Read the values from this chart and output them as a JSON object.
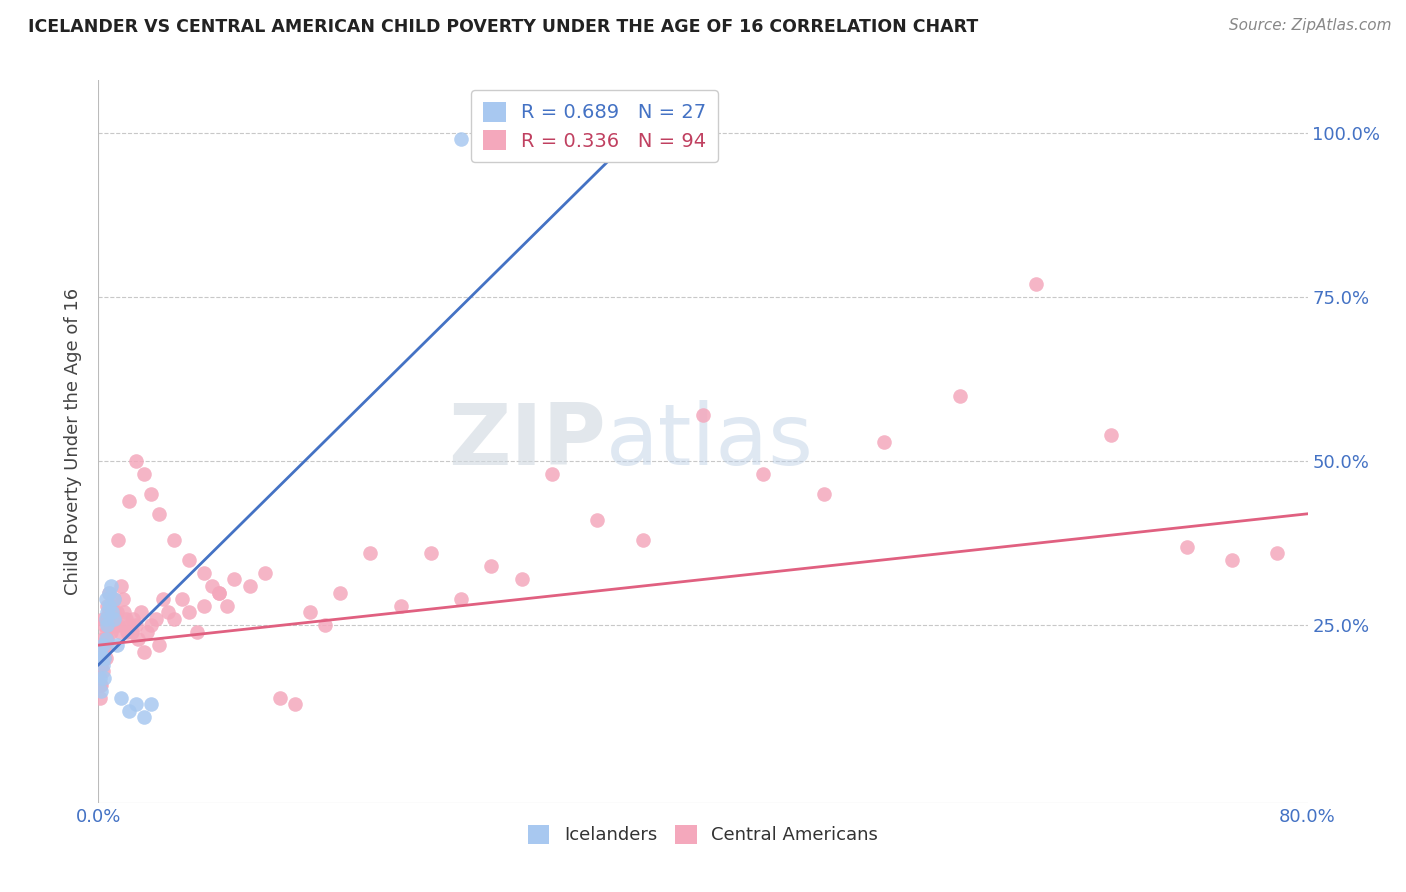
{
  "title": "ICELANDER VS CENTRAL AMERICAN CHILD POVERTY UNDER THE AGE OF 16 CORRELATION CHART",
  "source": "Source: ZipAtlas.com",
  "ylabel": "Child Poverty Under the Age of 16",
  "xlim": [
    0.0,
    0.8
  ],
  "ylim": [
    -0.02,
    1.08
  ],
  "ytick_positions": [
    0.25,
    0.5,
    0.75,
    1.0
  ],
  "ytick_labels": [
    "25.0%",
    "50.0%",
    "75.0%",
    "100.0%"
  ],
  "xtick_vals": [
    0.0,
    0.8
  ],
  "xtick_labels": [
    "0.0%",
    "80.0%"
  ],
  "grid_color": "#c8c8c8",
  "background_color": "#ffffff",
  "iceland_color": "#a8c8f0",
  "central_american_color": "#f4a8bc",
  "iceland_line_color": "#4472c4",
  "central_american_line_color": "#e06080",
  "iceland_R": 0.689,
  "iceland_N": 27,
  "central_american_R": 0.336,
  "central_american_N": 94,
  "iceland_x": [
    0.001,
    0.001,
    0.002,
    0.002,
    0.003,
    0.003,
    0.004,
    0.004,
    0.005,
    0.005,
    0.005,
    0.006,
    0.006,
    0.007,
    0.007,
    0.008,
    0.009,
    0.01,
    0.01,
    0.012,
    0.015,
    0.02,
    0.025,
    0.03,
    0.035,
    0.24,
    0.34
  ],
  "iceland_y": [
    0.21,
    0.17,
    0.2,
    0.15,
    0.22,
    0.19,
    0.2,
    0.17,
    0.29,
    0.26,
    0.23,
    0.27,
    0.25,
    0.3,
    0.28,
    0.31,
    0.27,
    0.29,
    0.26,
    0.22,
    0.14,
    0.12,
    0.13,
    0.11,
    0.13,
    0.99,
    0.99
  ],
  "ca_x": [
    0.001,
    0.001,
    0.001,
    0.002,
    0.002,
    0.002,
    0.003,
    0.003,
    0.003,
    0.003,
    0.004,
    0.004,
    0.004,
    0.005,
    0.005,
    0.005,
    0.006,
    0.006,
    0.006,
    0.007,
    0.007,
    0.008,
    0.008,
    0.009,
    0.009,
    0.01,
    0.01,
    0.011,
    0.012,
    0.013,
    0.014,
    0.015,
    0.016,
    0.017,
    0.018,
    0.019,
    0.02,
    0.022,
    0.023,
    0.025,
    0.026,
    0.028,
    0.03,
    0.032,
    0.035,
    0.038,
    0.04,
    0.043,
    0.046,
    0.05,
    0.055,
    0.06,
    0.065,
    0.07,
    0.075,
    0.08,
    0.085,
    0.09,
    0.1,
    0.11,
    0.12,
    0.13,
    0.14,
    0.15,
    0.16,
    0.18,
    0.2,
    0.22,
    0.24,
    0.26,
    0.28,
    0.3,
    0.33,
    0.36,
    0.4,
    0.44,
    0.48,
    0.52,
    0.57,
    0.62,
    0.67,
    0.72,
    0.75,
    0.78,
    0.013,
    0.02,
    0.025,
    0.03,
    0.035,
    0.04,
    0.05,
    0.06,
    0.07,
    0.08
  ],
  "ca_y": [
    0.19,
    0.16,
    0.14,
    0.22,
    0.19,
    0.16,
    0.26,
    0.23,
    0.21,
    0.18,
    0.25,
    0.22,
    0.2,
    0.24,
    0.22,
    0.2,
    0.28,
    0.26,
    0.23,
    0.3,
    0.27,
    0.26,
    0.24,
    0.28,
    0.25,
    0.29,
    0.27,
    0.25,
    0.27,
    0.25,
    0.24,
    0.31,
    0.29,
    0.27,
    0.26,
    0.24,
    0.25,
    0.24,
    0.26,
    0.25,
    0.23,
    0.27,
    0.21,
    0.24,
    0.25,
    0.26,
    0.22,
    0.29,
    0.27,
    0.26,
    0.29,
    0.27,
    0.24,
    0.28,
    0.31,
    0.3,
    0.28,
    0.32,
    0.31,
    0.33,
    0.14,
    0.13,
    0.27,
    0.25,
    0.3,
    0.36,
    0.28,
    0.36,
    0.29,
    0.34,
    0.32,
    0.48,
    0.41,
    0.38,
    0.57,
    0.48,
    0.45,
    0.53,
    0.6,
    0.77,
    0.54,
    0.37,
    0.35,
    0.36,
    0.38,
    0.44,
    0.5,
    0.48,
    0.45,
    0.42,
    0.38,
    0.35,
    0.33,
    0.3
  ],
  "iceland_line_x": [
    0.0,
    0.365
  ],
  "iceland_line_y": [
    0.19,
    1.02
  ],
  "ca_line_x": [
    0.0,
    0.8
  ],
  "ca_line_y": [
    0.22,
    0.42
  ]
}
